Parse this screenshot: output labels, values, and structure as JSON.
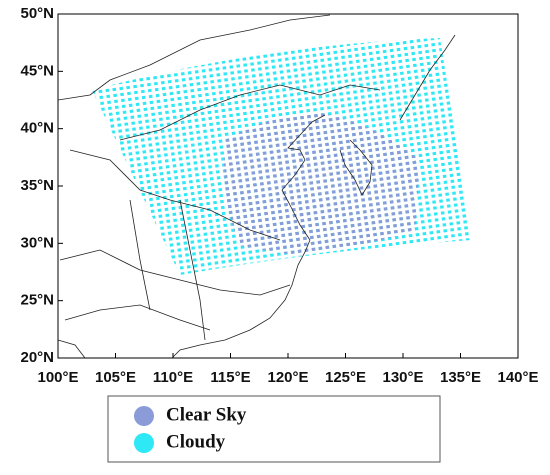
{
  "map": {
    "xlim": [
      100,
      140
    ],
    "ylim": [
      20,
      50
    ],
    "xticks": [
      {
        "value": 100,
        "label": "100°E"
      },
      {
        "value": 105,
        "label": "105°E"
      },
      {
        "value": 110,
        "label": "110°E"
      },
      {
        "value": 115,
        "label": "115°E"
      },
      {
        "value": 120,
        "label": "120°E"
      },
      {
        "value": 125,
        "label": "125°E"
      },
      {
        "value": 130,
        "label": "130°E"
      },
      {
        "value": 135,
        "label": "135°E"
      },
      {
        "value": 140,
        "label": "140°E"
      }
    ],
    "yticks": [
      {
        "value": 20,
        "label": "20°N"
      },
      {
        "value": 25,
        "label": "25°N"
      },
      {
        "value": 30,
        "label": "30°N"
      },
      {
        "value": 35,
        "label": "35°N"
      },
      {
        "value": 40,
        "label": "40°N"
      },
      {
        "value": 45,
        "label": "45°N"
      },
      {
        "value": 50,
        "label": "50°N"
      }
    ],
    "legend": [
      {
        "name": "Clear Sky",
        "color": "#8a9bd8"
      },
      {
        "name": "Cloudy",
        "color": "#2ee8f6"
      }
    ]
  }
}
